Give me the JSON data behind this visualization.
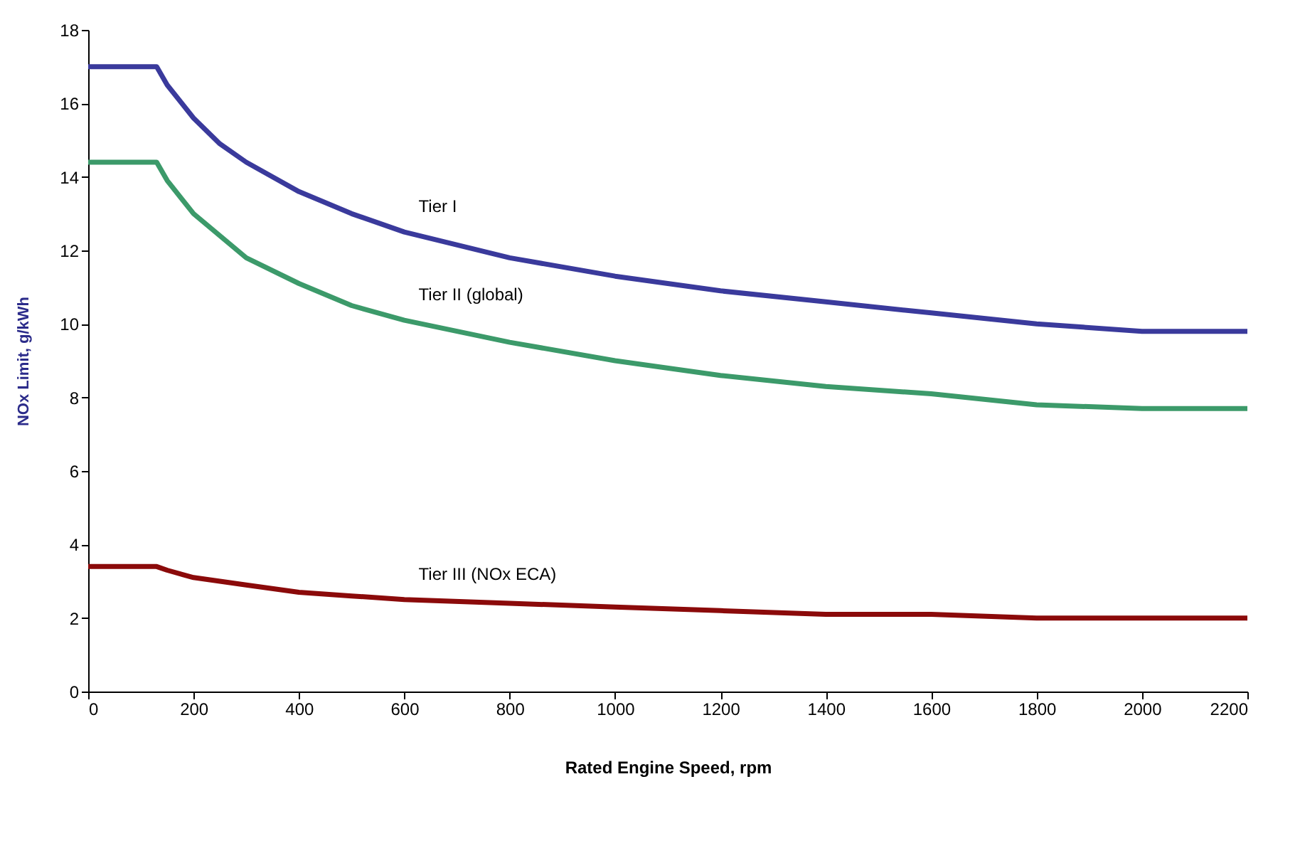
{
  "chart_data": {
    "type": "line",
    "xlabel": "Rated Engine Speed, rpm",
    "ylabel": "NOx Limit, g/kWh",
    "x": [
      0,
      130,
      150,
      200,
      250,
      300,
      400,
      500,
      600,
      800,
      1000,
      1200,
      1400,
      1600,
      1800,
      2000,
      2200
    ],
    "series": [
      {
        "name": "Tier I",
        "color": "#3a3a9c",
        "values": [
          17.0,
          17.0,
          16.5,
          15.6,
          14.9,
          14.4,
          13.6,
          13.0,
          12.5,
          11.8,
          11.3,
          10.9,
          10.6,
          10.3,
          10.0,
          9.8,
          9.8
        ]
      },
      {
        "name": "Tier II (global)",
        "color": "#3c9a6a",
        "values": [
          14.4,
          14.4,
          13.9,
          13.0,
          12.4,
          11.8,
          11.1,
          10.5,
          10.1,
          9.5,
          9.0,
          8.6,
          8.3,
          8.1,
          7.8,
          7.7,
          7.7
        ]
      },
      {
        "name": "Tier III (NOx ECA)",
        "color": "#8b0a0a",
        "values": [
          3.4,
          3.4,
          3.3,
          3.1,
          3.0,
          2.9,
          2.7,
          2.6,
          2.5,
          2.4,
          2.3,
          2.2,
          2.1,
          2.1,
          2.0,
          2.0,
          2.0
        ]
      }
    ],
    "xlim": [
      0,
      2200
    ],
    "xticks": [
      0,
      200,
      400,
      600,
      800,
      1000,
      1200,
      1400,
      1600,
      1800,
      2000,
      2200
    ],
    "ylim": [
      0,
      18
    ],
    "yticks": [
      0,
      2,
      4,
      6,
      8,
      10,
      12,
      14,
      16,
      18
    ],
    "grid": false,
    "legend": false,
    "marker": "none",
    "line_style": "solid"
  }
}
